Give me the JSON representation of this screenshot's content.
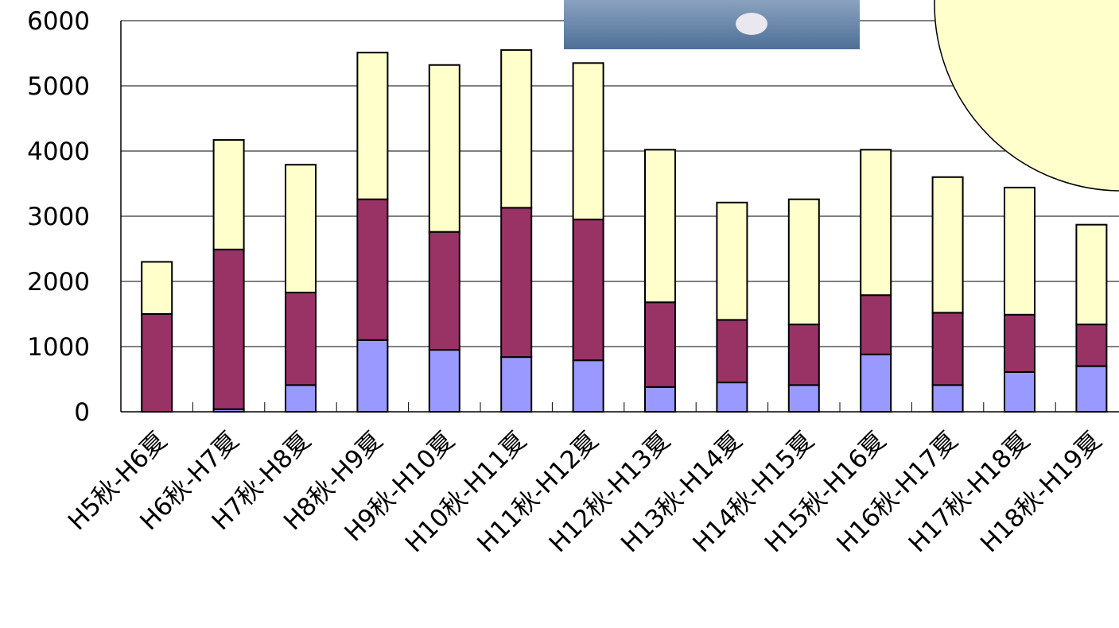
{
  "chart_data": {
    "type": "stacked_bar",
    "categories": [
      "H5秋-H6夏",
      "H6秋-H7夏",
      "H7秋-H8夏",
      "H8秋-H9夏",
      "H9秋-H10夏",
      "H10秋-H11夏",
      "H11秋-H12夏",
      "H12秋-H13夏",
      "H13秋-H14夏",
      "H14秋-H15夏",
      "H15秋-H16夏",
      "H16秋-H17夏",
      "H17秋-H18夏",
      "H18秋-H19夏"
    ],
    "series": [
      {
        "color": "#9999ff",
        "values": [
          0,
          40,
          410,
          1100,
          950,
          840,
          790,
          380,
          450,
          410,
          880,
          410,
          610,
          700
        ]
      },
      {
        "color": "#993366",
        "values": [
          1500,
          2450,
          1420,
          2160,
          1810,
          2290,
          2160,
          1300,
          960,
          930,
          910,
          1110,
          880,
          640
        ]
      },
      {
        "color": "#ffffcc",
        "values": [
          800,
          1680,
          1960,
          2250,
          2560,
          2420,
          2400,
          2340,
          1800,
          1920,
          2230,
          2080,
          1950,
          1530
        ]
      }
    ],
    "ylim": [
      0,
      6000
    ],
    "yticks": [
      0,
      1000,
      2000,
      3000,
      4000,
      5000,
      6000
    ],
    "grid": true
  }
}
